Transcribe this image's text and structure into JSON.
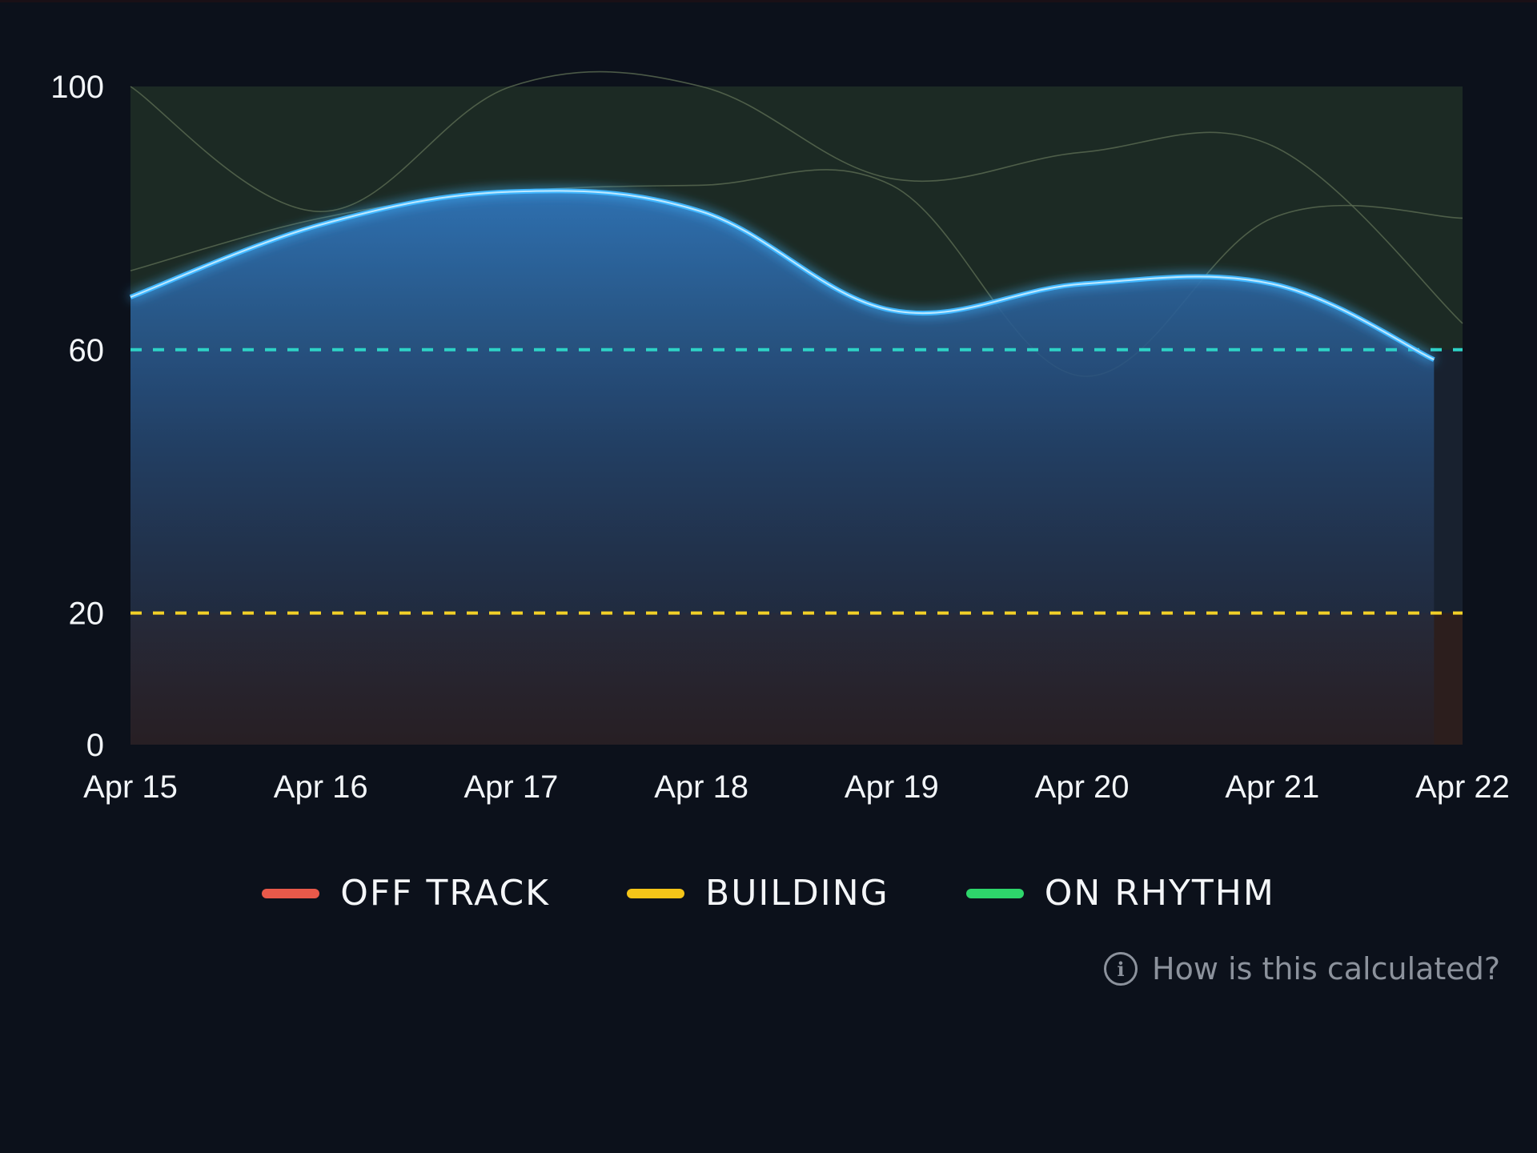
{
  "chart_data": {
    "type": "area",
    "x": [
      "Apr 15",
      "Apr 16",
      "Apr 17",
      "Apr 18",
      "Apr 19",
      "Apr 20",
      "Apr 21",
      "Apr 22"
    ],
    "y_ticks": [
      0,
      20,
      60,
      100
    ],
    "ylim": [
      0,
      100
    ],
    "series": [
      {
        "values": [
          68,
          79,
          84,
          81,
          66,
          70,
          70,
          58.5
        ],
        "color": "#3fb6ff"
      }
    ],
    "background_series": [
      {
        "values": [
          100,
          81,
          100,
          100,
          86,
          90,
          91,
          64
        ]
      },
      {
        "values": [
          72,
          80,
          84,
          85,
          85,
          56,
          80,
          80
        ]
      }
    ],
    "thresholds": [
      {
        "value": 60,
        "color": "#2ed3c6"
      },
      {
        "value": 20,
        "color": "#f2d027"
      }
    ],
    "bands": [
      {
        "from": 60,
        "to": 100,
        "color": "#1c2a24"
      },
      {
        "from": 0,
        "to": 20,
        "color": "#2c1e1d"
      }
    ],
    "grid": false
  },
  "legend": {
    "items": [
      {
        "label": "OFF TRACK",
        "color": "#e8594a"
      },
      {
        "label": "BUILDING",
        "color": "#f5c518"
      },
      {
        "label": "ON RHYTHM",
        "color": "#2ed66b"
      }
    ]
  },
  "help": {
    "label": "How is this calculated?",
    "icon": "info-icon"
  }
}
